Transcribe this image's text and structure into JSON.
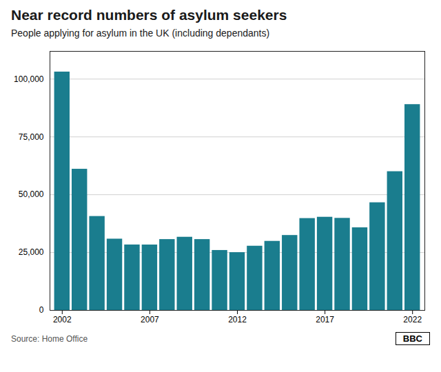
{
  "chart_data": {
    "type": "bar",
    "title": "Near record numbers of asylum seekers",
    "subtitle": "People applying for asylum in the UK (including dependants)",
    "source": "Source: Home Office",
    "logo": "BBC",
    "x": [
      2002,
      2003,
      2004,
      2005,
      2006,
      2007,
      2008,
      2009,
      2010,
      2011,
      2012,
      2013,
      2014,
      2015,
      2016,
      2017,
      2018,
      2019,
      2020,
      2021,
      2022
    ],
    "values": [
      103081,
      61050,
      40625,
      30840,
      28320,
      28300,
      30650,
      31655,
      30650,
      25930,
      24999,
      27780,
      29875,
      32414,
      39735,
      40299,
      39823,
      35737,
      46566,
      60000,
      89000
    ],
    "color": "#1a7d8e",
    "xlim": [
      2001.3,
      2022.7
    ],
    "xticks": [
      2002,
      2007,
      2012,
      2017,
      2022
    ],
    "ylim": [
      0,
      112000
    ],
    "yticks": [
      0,
      {
        "value": 25000,
        "label": "25,000"
      },
      {
        "value": 50000,
        "label": "50,000"
      },
      {
        "value": 75000,
        "label": "75,000"
      },
      {
        "value": 100000,
        "label": "100,000"
      }
    ],
    "grid": true
  }
}
